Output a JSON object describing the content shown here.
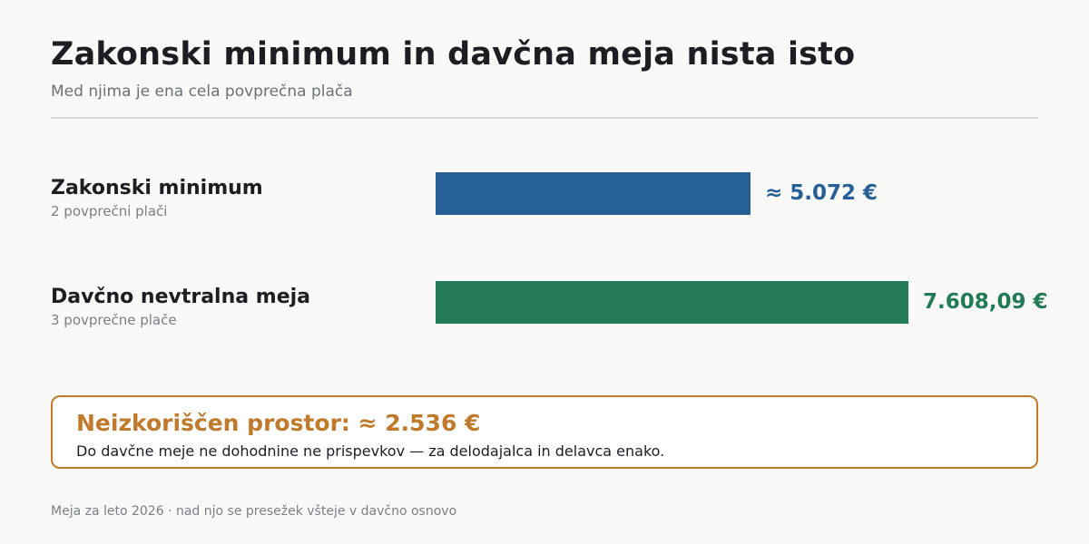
{
  "chart_data": {
    "type": "bar",
    "orientation": "horizontal",
    "title": "Zakonski minimum in davčna meja nista isto",
    "subtitle": "Med njima je ena cela povprečna plača",
    "xlim": [
      0,
      10520
    ],
    "bars": [
      {
        "label": "Zakonski minimum",
        "sublabel": "2 povprečni plači",
        "value": 5072,
        "value_label": "≈ 5.072 €",
        "color": "#276096"
      },
      {
        "label": "Davčno nevtralna meja",
        "sublabel": "3 povprečne plače",
        "value": 7608.09,
        "value_label": "7.608,09 €",
        "color": "#227a56"
      }
    ]
  },
  "callout": {
    "title": "Neizkoriščen prostor: ≈ 2.536 €",
    "text": "Do davčne meje ne dohodnine ne prispevkov — za delodajalca in delavca enako.",
    "color": "#c07a2c"
  },
  "footnote": "Meja za leto 2026 · nad njo se presežek všteje v davčno osnovo"
}
